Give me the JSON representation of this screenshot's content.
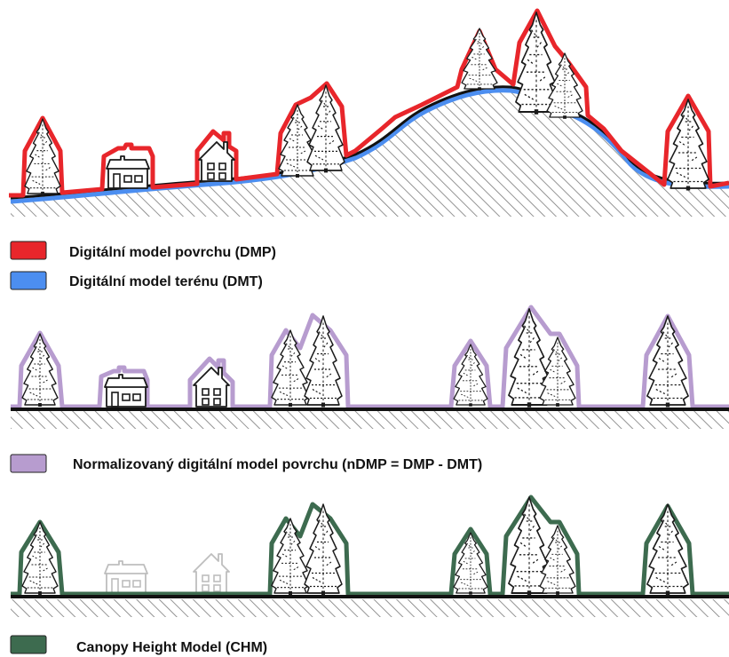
{
  "legend": {
    "dmp": {
      "label": "Digitální model povrchu (DMP)",
      "color": "#e8262b"
    },
    "dmt": {
      "label": "Digitální model terénu (DMT)",
      "color": "#4c8ef0"
    },
    "ndmp": {
      "label": "Normalizovaný digitální model povrchu (nDMP = DMP - DMT)",
      "color": "#b79ccf"
    },
    "chm": {
      "label": "Canopy Height Model (CHM)",
      "color": "#3d6b4f"
    }
  },
  "colors": {
    "ground_hatch": "#7a7a7a",
    "ground_line": "#111111",
    "tree_stroke": "#1a1a1a",
    "faded_house": "#c8c8c8"
  }
}
